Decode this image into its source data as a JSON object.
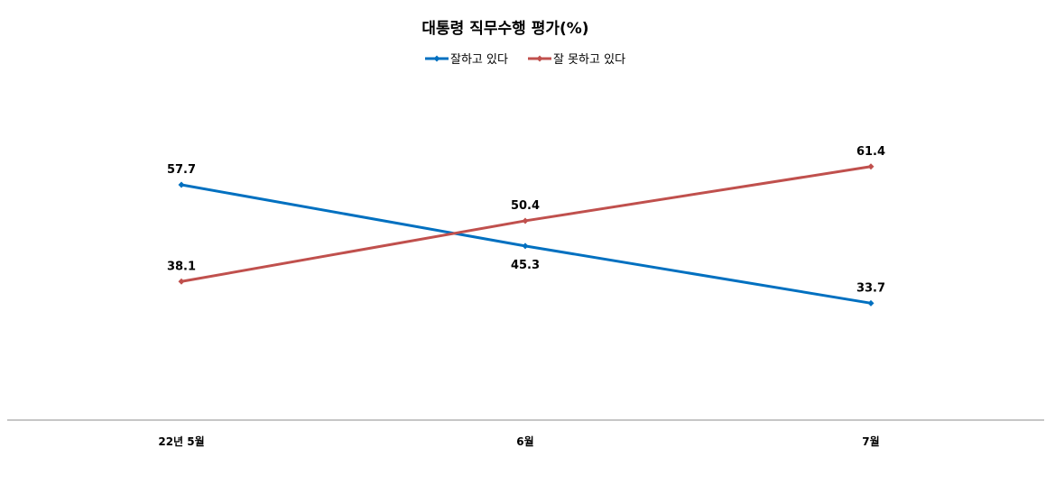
{
  "chart_data": {
    "type": "line",
    "title": "대통령 직무수행 평가(%)",
    "categories": [
      "22년 5월",
      "6월",
      "7월"
    ],
    "series": [
      {
        "name": "잘하고 있다",
        "color": "#0070C0",
        "values": [
          57.7,
          45.3,
          33.7
        ]
      },
      {
        "name": "잘 못하고 있다",
        "color": "#C0504D",
        "values": [
          38.1,
          50.4,
          61.4
        ]
      }
    ],
    "xlabel": "",
    "ylabel": "",
    "ylim": [
      10,
      80
    ],
    "grid": false,
    "legend": "top-center",
    "label_position": [
      [
        "top",
        "top"
      ],
      [
        "bottom",
        "top"
      ],
      [
        "top",
        "top"
      ]
    ]
  }
}
